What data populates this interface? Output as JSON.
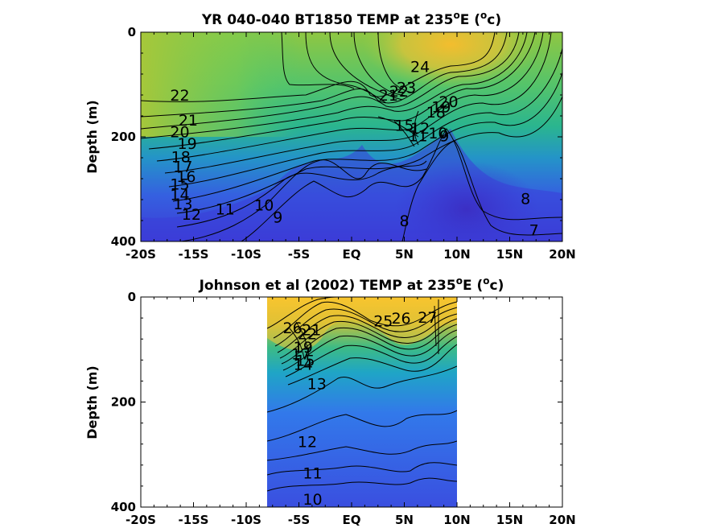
{
  "chart_data": [
    {
      "type": "contour",
      "title_main": "YR 040-040 BT1850 TEMP at 235",
      "title_deg": "o",
      "title_tail": "E (",
      "title_unit_sup": "o",
      "title_unit": "c)",
      "ylabel": "Depth (m)",
      "xlabel": "",
      "xlim": [
        -20,
        20
      ],
      "ylim": [
        0,
        400
      ],
      "y_reversed": true,
      "x_ticks": [
        -20,
        -15,
        -10,
        -5,
        0,
        5,
        10,
        15,
        20
      ],
      "x_tick_labels": [
        "-20S",
        "-15S",
        "-10S",
        "-5S",
        "EQ",
        "5N",
        "10N",
        "15N",
        "20N"
      ],
      "y_ticks": [
        0,
        200,
        400
      ],
      "y_tick_labels": [
        "0",
        "200",
        "400"
      ],
      "data_extent_x": [
        -20,
        20
      ],
      "contour_labels": [
        {
          "text": "24",
          "x": 6.5,
          "y": 65
        },
        {
          "text": "22",
          "x": -16.3,
          "y": 120
        },
        {
          "text": "23",
          "x": 5.2,
          "y": 105
        },
        {
          "text": "22",
          "x": 4.5,
          "y": 112
        },
        {
          "text": "21",
          "x": 3.5,
          "y": 120
        },
        {
          "text": "20",
          "x": 9.2,
          "y": 132
        },
        {
          "text": "19",
          "x": 8.5,
          "y": 142
        },
        {
          "text": "18",
          "x": 8.0,
          "y": 152
        },
        {
          "text": "15",
          "x": 5.0,
          "y": 178
        },
        {
          "text": "12",
          "x": 6.5,
          "y": 183
        },
        {
          "text": "11",
          "x": 6.3,
          "y": 198
        },
        {
          "text": "10",
          "x": 8.2,
          "y": 192
        },
        {
          "text": "9",
          "x": 8.8,
          "y": 198
        },
        {
          "text": "21",
          "x": -15.5,
          "y": 168
        },
        {
          "text": "20",
          "x": -16.3,
          "y": 190
        },
        {
          "text": "19",
          "x": -15.6,
          "y": 212
        },
        {
          "text": "18",
          "x": -16.2,
          "y": 238
        },
        {
          "text": "17",
          "x": -16.0,
          "y": 256
        },
        {
          "text": "16",
          "x": -15.7,
          "y": 275
        },
        {
          "text": "15",
          "x": -16.3,
          "y": 290
        },
        {
          "text": "14",
          "x": -16.3,
          "y": 310
        },
        {
          "text": "13",
          "x": -16.0,
          "y": 328
        },
        {
          "text": "12",
          "x": -15.2,
          "y": 348
        },
        {
          "text": "11",
          "x": -12.0,
          "y": 338
        },
        {
          "text": "10",
          "x": -8.3,
          "y": 330
        },
        {
          "text": "9",
          "x": -7.0,
          "y": 353
        },
        {
          "text": "8",
          "x": 5.0,
          "y": 360
        },
        {
          "text": "8",
          "x": 16.5,
          "y": 318
        },
        {
          "text": "7",
          "x": 17.3,
          "y": 378
        }
      ]
    },
    {
      "type": "contour",
      "title_main": "Johnson et al (2002) TEMP at 235",
      "title_deg": "o",
      "title_tail": "E (",
      "title_unit_sup": "o",
      "title_unit": "c)",
      "ylabel": "Depth (m)",
      "xlabel": "",
      "xlim": [
        -20,
        20
      ],
      "ylim": [
        0,
        400
      ],
      "y_reversed": true,
      "x_ticks": [
        -20,
        -15,
        -10,
        -5,
        0,
        5,
        10,
        15,
        20
      ],
      "x_tick_labels": [
        "-20S",
        "-15S",
        "-10S",
        "-5S",
        "EQ",
        "5N",
        "10N",
        "15N",
        "20N"
      ],
      "y_ticks": [
        0,
        200,
        400
      ],
      "y_tick_labels": [
        "0",
        "200",
        "400"
      ],
      "data_extent_x": [
        -8,
        10
      ],
      "contour_labels": [
        {
          "text": "26",
          "x": -5.6,
          "y": 58
        },
        {
          "text": "22",
          "x": -4.2,
          "y": 70
        },
        {
          "text": "21",
          "x": -3.8,
          "y": 62
        },
        {
          "text": "19",
          "x": -4.6,
          "y": 95
        },
        {
          "text": "17",
          "x": -4.8,
          "y": 108
        },
        {
          "text": "15",
          "x": -4.4,
          "y": 120
        },
        {
          "text": "14",
          "x": -4.6,
          "y": 128
        },
        {
          "text": "13",
          "x": -3.3,
          "y": 165
        },
        {
          "text": "26",
          "x": 4.7,
          "y": 40
        },
        {
          "text": "25",
          "x": 3.0,
          "y": 45
        },
        {
          "text": "27",
          "x": 7.2,
          "y": 38
        },
        {
          "text": "12",
          "x": -4.2,
          "y": 275
        },
        {
          "text": "11",
          "x": -3.7,
          "y": 335
        },
        {
          "text": "10",
          "x": -3.7,
          "y": 385
        }
      ]
    }
  ]
}
